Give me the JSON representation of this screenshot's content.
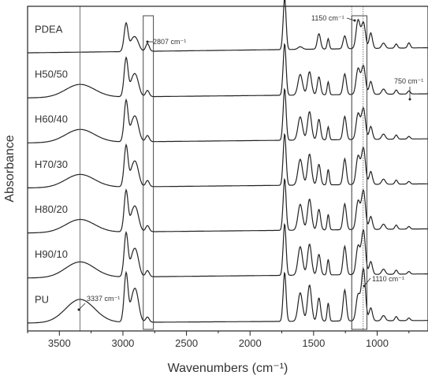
{
  "chart_data": {
    "type": "line",
    "xlabel": "Wavenumbers (cm⁻¹)",
    "ylabel": "Absorbance",
    "xlim": [
      3750,
      600
    ],
    "x_ticks": [
      {
        "value": 3500,
        "label": "3500"
      },
      {
        "value": 3000,
        "label": "3000"
      },
      {
        "value": 2500,
        "label": "2500"
      },
      {
        "value": 2000,
        "label": "2000"
      },
      {
        "value": 1500,
        "label": "1500"
      },
      {
        "value": 1000,
        "label": "1000"
      }
    ],
    "vertical_lines": [
      3337,
      1200,
      1110
    ],
    "boxes": [
      {
        "from": 2840,
        "to": 2760
      },
      {
        "from": 1200,
        "to": 1080
      }
    ],
    "series": [
      {
        "name": "PDEA",
        "values": {
          "baseline": 0.1,
          "oh": 0.0,
          "ch2970": 0.55,
          "ch2900": 0.25,
          "ch2807": 0.15,
          "co1730": 1.0,
          "f1600": 0.05,
          "f1530": 0.0,
          "f1460": 0.3,
          "f1380": 0.2,
          "f1260": 0.25,
          "f1150": 0.55,
          "f1110": 0.5,
          "f1050": 0.3,
          "f750": 0.1
        }
      },
      {
        "name": "H50/50",
        "values": {
          "baseline": 0.08,
          "oh": 0.25,
          "ch2970": 0.75,
          "ch2900": 0.4,
          "ch2807": 0.12,
          "co1730": 1.0,
          "f1600": 0.4,
          "f1530": 0.45,
          "f1460": 0.35,
          "f1380": 0.25,
          "f1260": 0.4,
          "f1150": 0.5,
          "f1110": 0.55,
          "f1050": 0.25,
          "f750": 0.06
        }
      },
      {
        "name": "H60/40",
        "values": {
          "baseline": 0.08,
          "oh": 0.25,
          "ch2970": 0.8,
          "ch2900": 0.45,
          "ch2807": 0.12,
          "co1730": 1.0,
          "f1600": 0.45,
          "f1530": 0.55,
          "f1460": 0.4,
          "f1380": 0.25,
          "f1260": 0.45,
          "f1150": 0.5,
          "f1110": 0.6,
          "f1050": 0.25,
          "f750": 0.05
        }
      },
      {
        "name": "H70/30",
        "values": {
          "baseline": 0.08,
          "oh": 0.25,
          "ch2970": 0.8,
          "ch2900": 0.45,
          "ch2807": 0.12,
          "co1730": 1.0,
          "f1600": 0.5,
          "f1530": 0.6,
          "f1460": 0.4,
          "f1380": 0.3,
          "f1260": 0.5,
          "f1150": 0.55,
          "f1110": 0.7,
          "f1050": 0.25,
          "f750": 0.05
        }
      },
      {
        "name": "H80/20",
        "values": {
          "baseline": 0.08,
          "oh": 0.25,
          "ch2970": 0.8,
          "ch2900": 0.45,
          "ch2807": 0.12,
          "co1730": 1.0,
          "f1600": 0.5,
          "f1530": 0.6,
          "f1460": 0.4,
          "f1380": 0.3,
          "f1260": 0.5,
          "f1150": 0.55,
          "f1110": 0.75,
          "f1050": 0.25,
          "f750": 0.05
        }
      },
      {
        "name": "H90/10",
        "values": {
          "baseline": 0.08,
          "oh": 0.3,
          "ch2970": 0.85,
          "ch2900": 0.5,
          "ch2807": 0.12,
          "co1730": 1.0,
          "f1600": 0.55,
          "f1530": 0.6,
          "f1460": 0.4,
          "f1380": 0.3,
          "f1260": 0.55,
          "f1150": 0.55,
          "f1110": 0.85,
          "f1050": 0.25,
          "f750": 0.05
        }
      },
      {
        "name": "PU",
        "values": {
          "baseline": 0.05,
          "oh": 0.45,
          "ch2970": 0.95,
          "ch2900": 0.6,
          "ch2807": 0.1,
          "co1730": 0.95,
          "f1600": 0.55,
          "f1530": 0.7,
          "f1460": 0.45,
          "f1380": 0.35,
          "f1260": 0.6,
          "f1150": 0.5,
          "f1110": 1.0,
          "f1050": 0.25,
          "f750": 0.05
        }
      }
    ],
    "annotations": [
      {
        "text": "2807 cm⁻¹",
        "x": 2807
      },
      {
        "text": "1150 cm⁻¹",
        "x": 1150
      },
      {
        "text": "750 cm⁻¹",
        "x": 750
      },
      {
        "text": "3337 cm⁻¹",
        "x": 3337
      },
      {
        "text": "1110 cm⁻¹",
        "x": 1110
      }
    ]
  }
}
